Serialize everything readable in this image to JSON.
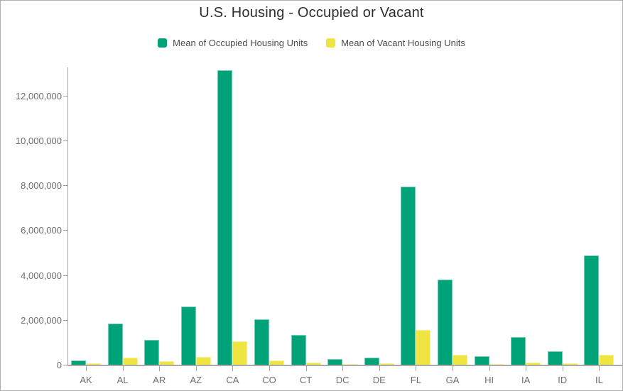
{
  "title": "U.S. Housing - Occupied or Vacant",
  "legend": {
    "items": [
      {
        "label": "Mean of Occupied Housing Units",
        "color": "#00a378"
      },
      {
        "label": "Mean of Vacant Housing Units",
        "color": "#f0e442"
      }
    ]
  },
  "axis": {
    "y_tick_labels": [
      "0",
      "2,000,000",
      "4,000,000",
      "6,000,000",
      "8,000,000",
      "10,000,000",
      "12,000,000"
    ]
  },
  "chart_data": {
    "type": "bar",
    "title": "U.S. Housing - Occupied or Vacant",
    "xlabel": "",
    "ylabel": "",
    "categories": [
      "AK",
      "AL",
      "AR",
      "AZ",
      "CA",
      "CO",
      "CT",
      "DC",
      "DE",
      "FL",
      "GA",
      "HI",
      "IA",
      "ID",
      "IL"
    ],
    "series": [
      {
        "name": "Mean of Occupied Housing Units",
        "color": "#00a378",
        "values": [
          200000,
          1850000,
          1120000,
          2600000,
          13120000,
          2040000,
          1320000,
          250000,
          320000,
          7930000,
          3800000,
          390000,
          1220000,
          600000,
          4870000
        ]
      },
      {
        "name": "Mean of Vacant Housing Units",
        "color": "#f0e442",
        "values": [
          60000,
          310000,
          150000,
          350000,
          1050000,
          180000,
          110000,
          30000,
          50000,
          1560000,
          430000,
          40000,
          90000,
          60000,
          440000
        ]
      }
    ],
    "ylim": [
      0,
      13200000
    ],
    "yticks": [
      0,
      2000000,
      4000000,
      6000000,
      8000000,
      10000000,
      12000000
    ],
    "grid": false,
    "legend_position": "top",
    "background": "#ffffff"
  }
}
